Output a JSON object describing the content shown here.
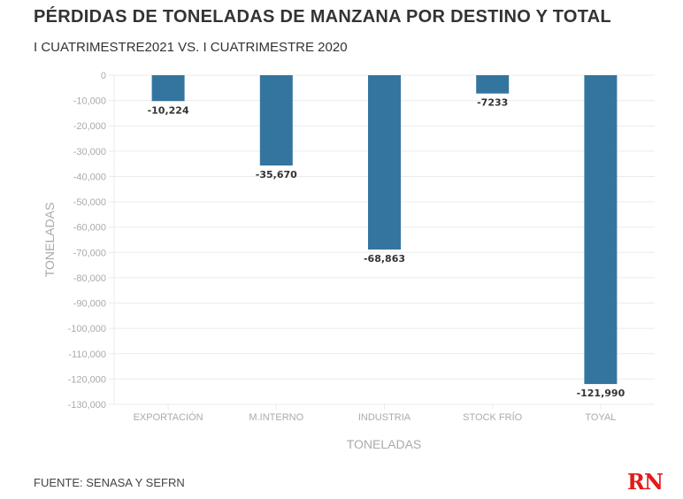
{
  "header": {
    "title": "PÉRDIDAS DE TONELADAS DE MANZANA POR DESTINO Y TOTAL",
    "subtitle": "I CUATRIMESTRE2021 VS. I CUATRIMESTRE 2020"
  },
  "footer": {
    "source": "FUENTE: SENASA Y SEFRN",
    "logo": "RN"
  },
  "colors": {
    "bar": "#34759f",
    "grid": "#ebebeb",
    "logo": "#e41a1c"
  },
  "chart_data": {
    "type": "bar",
    "title": "PÉRDIDAS DE TONELADAS DE MANZANA POR DESTINO Y TOTAL",
    "subtitle": "I CUATRIMESTRE2021 VS. I CUATRIMESTRE 2020",
    "categories": [
      "EXPORTACIÓN",
      "M.INTERNO",
      "INDUSTRIA",
      "STOCK FRÍO",
      "TOYAL"
    ],
    "values": [
      -10224,
      -35670,
      -68863,
      -7233,
      -121990
    ],
    "data_labels": [
      "-10,224",
      "-35,670",
      "-68,863",
      "-7233",
      "-121,990"
    ],
    "xlabel": "TONELADAS",
    "ylabel": "TONELADAS",
    "ylim": [
      -130000,
      0
    ],
    "yticks": [
      0,
      -10000,
      -20000,
      -30000,
      -40000,
      -50000,
      -60000,
      -70000,
      -80000,
      -90000,
      -100000,
      -110000,
      -120000,
      -130000
    ],
    "ytick_labels": [
      "0",
      "-10,000",
      "-20,000",
      "-30,000",
      "-40,000",
      "-50,000",
      "-60,000",
      "-70,000",
      "-80,000",
      "-90,000",
      "-100,000",
      "-110,000",
      "-120,000",
      "-130,000"
    ],
    "grid": true,
    "legend": "none"
  }
}
